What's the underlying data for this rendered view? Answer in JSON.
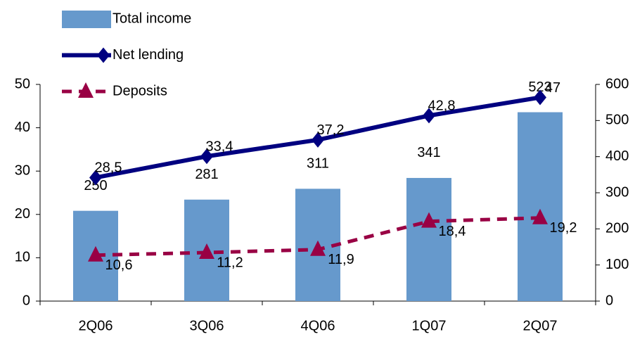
{
  "chart_data": {
    "type": "combo",
    "categories": [
      "2Q06",
      "3Q06",
      "4Q06",
      "1Q07",
      "2Q07"
    ],
    "ylim": [
      0,
      50
    ],
    "yticks": [
      0,
      10,
      20,
      30,
      40,
      50
    ],
    "y2lim": [
      0,
      600
    ],
    "y2ticks": [
      0,
      100,
      200,
      300,
      400,
      500,
      600
    ],
    "legend": "top-left",
    "series": [
      {
        "name": "Total income",
        "type": "bar",
        "axis": "y2",
        "color": "#6699cc",
        "values": [
          250,
          281,
          311,
          341,
          523
        ]
      },
      {
        "name": "Net lending",
        "type": "line",
        "color": "#000080",
        "marker": "diamond",
        "line_style": "solid",
        "values": [
          28.5,
          33.4,
          37.2,
          42.8,
          47
        ],
        "value_labels": [
          "28,5",
          "33,4",
          "37,2",
          "42,8",
          "47"
        ]
      },
      {
        "name": "Deposits",
        "type": "line",
        "color": "#990044",
        "marker": "triangle",
        "line_style": "dashed",
        "values": [
          10.6,
          11.2,
          11.9,
          18.4,
          19.2
        ],
        "value_labels": [
          "10,6",
          "11,2",
          "11,9",
          "18,4",
          "19,2"
        ]
      }
    ]
  }
}
